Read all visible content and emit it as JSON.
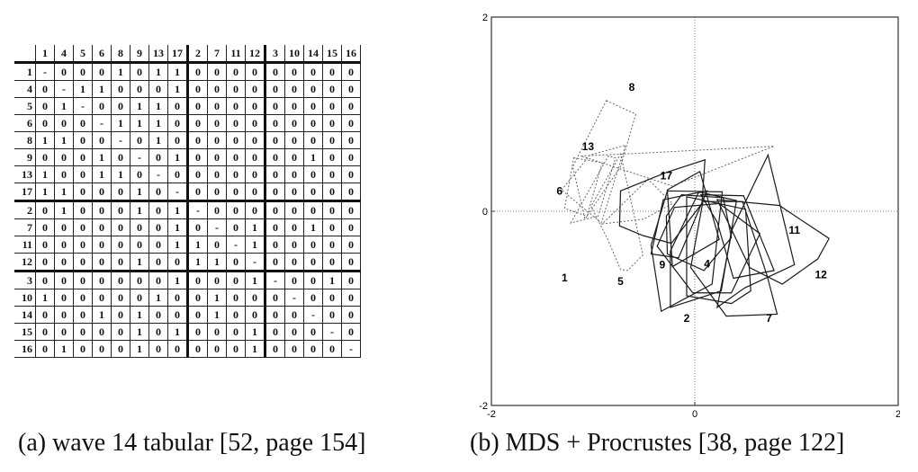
{
  "table": {
    "order": [
      "1",
      "4",
      "5",
      "6",
      "8",
      "9",
      "13",
      "17",
      "2",
      "7",
      "11",
      "12",
      "3",
      "10",
      "14",
      "15",
      "16"
    ],
    "rows": [
      [
        "-",
        "0",
        "0",
        "0",
        "1",
        "0",
        "1",
        "1",
        "0",
        "0",
        "0",
        "0",
        "0",
        "0",
        "0",
        "0",
        "0"
      ],
      [
        "0",
        "-",
        "1",
        "1",
        "0",
        "0",
        "0",
        "1",
        "0",
        "0",
        "0",
        "0",
        "0",
        "0",
        "0",
        "0",
        "0"
      ],
      [
        "0",
        "1",
        "-",
        "0",
        "0",
        "1",
        "1",
        "0",
        "0",
        "0",
        "0",
        "0",
        "0",
        "0",
        "0",
        "0",
        "0"
      ],
      [
        "0",
        "0",
        "0",
        "-",
        "1",
        "1",
        "1",
        "0",
        "0",
        "0",
        "0",
        "0",
        "0",
        "0",
        "0",
        "0",
        "0"
      ],
      [
        "1",
        "1",
        "0",
        "0",
        "-",
        "0",
        "1",
        "0",
        "0",
        "0",
        "0",
        "0",
        "0",
        "0",
        "0",
        "0",
        "0"
      ],
      [
        "0",
        "0",
        "0",
        "1",
        "0",
        "-",
        "0",
        "1",
        "0",
        "0",
        "0",
        "0",
        "0",
        "0",
        "1",
        "0",
        "0"
      ],
      [
        "1",
        "0",
        "0",
        "1",
        "1",
        "0",
        "-",
        "0",
        "0",
        "0",
        "0",
        "0",
        "0",
        "0",
        "0",
        "0",
        "0"
      ],
      [
        "1",
        "1",
        "0",
        "0",
        "0",
        "1",
        "0",
        "-",
        "0",
        "0",
        "0",
        "0",
        "0",
        "0",
        "0",
        "0",
        "0"
      ],
      [
        "0",
        "1",
        "0",
        "0",
        "0",
        "1",
        "0",
        "1",
        "-",
        "0",
        "0",
        "0",
        "0",
        "0",
        "0",
        "0",
        "0"
      ],
      [
        "0",
        "0",
        "0",
        "0",
        "0",
        "0",
        "0",
        "1",
        "0",
        "-",
        "0",
        "1",
        "0",
        "0",
        "1",
        "0",
        "0"
      ],
      [
        "0",
        "0",
        "0",
        "0",
        "0",
        "0",
        "0",
        "1",
        "1",
        "0",
        "-",
        "1",
        "0",
        "0",
        "0",
        "0",
        "0"
      ],
      [
        "0",
        "0",
        "0",
        "0",
        "0",
        "1",
        "0",
        "0",
        "1",
        "1",
        "0",
        "-",
        "0",
        "0",
        "0",
        "0",
        "0"
      ],
      [
        "0",
        "0",
        "0",
        "0",
        "0",
        "0",
        "0",
        "1",
        "0",
        "0",
        "0",
        "1",
        "-",
        "0",
        "0",
        "1",
        "0"
      ],
      [
        "1",
        "0",
        "0",
        "0",
        "0",
        "0",
        "1",
        "0",
        "0",
        "1",
        "0",
        "0",
        "0",
        "-",
        "0",
        "0",
        "0"
      ],
      [
        "0",
        "0",
        "0",
        "1",
        "0",
        "1",
        "0",
        "0",
        "0",
        "1",
        "0",
        "0",
        "0",
        "0",
        "-",
        "0",
        "0"
      ],
      [
        "0",
        "0",
        "0",
        "0",
        "0",
        "1",
        "0",
        "1",
        "0",
        "0",
        "0",
        "1",
        "0",
        "0",
        "0",
        "-",
        "0"
      ],
      [
        "0",
        "1",
        "0",
        "0",
        "0",
        "1",
        "0",
        "0",
        "0",
        "0",
        "0",
        "1",
        "0",
        "0",
        "0",
        "0",
        "-"
      ]
    ]
  },
  "plot": {
    "x_ticks": [
      "-2",
      "0",
      "2"
    ],
    "y_ticks": [
      "2",
      "0",
      "-2"
    ],
    "range": [
      -2,
      2
    ],
    "labels": [
      {
        "text": "8",
        "x": -0.62,
        "y": 1.24
      },
      {
        "text": "13",
        "x": -1.05,
        "y": 0.63
      },
      {
        "text": "6",
        "x": -1.33,
        "y": 0.17
      },
      {
        "text": "1",
        "x": -1.28,
        "y": -0.72
      },
      {
        "text": "5",
        "x": -0.73,
        "y": -0.76
      },
      {
        "text": "17",
        "x": -0.28,
        "y": 0.33
      },
      {
        "text": "9",
        "x": -0.32,
        "y": -0.59
      },
      {
        "text": "4",
        "x": 0.12,
        "y": -0.58
      },
      {
        "text": "11",
        "x": 0.98,
        "y": -0.23
      },
      {
        "text": "12",
        "x": 1.24,
        "y": -0.69
      },
      {
        "text": "2",
        "x": -0.08,
        "y": -1.14
      },
      {
        "text": "7",
        "x": 0.73,
        "y": -1.14
      }
    ],
    "dotted_polygons": [
      [
        [
          -0.87,
          1.14
        ],
        [
          -0.58,
          1.0
        ],
        [
          -0.73,
          0.46
        ],
        [
          -1.08,
          -0.08
        ],
        [
          -1.2,
          0.46
        ]
      ],
      [
        [
          -1.19,
          0.55
        ],
        [
          -0.91,
          0.5
        ],
        [
          -1.06,
          -0.05
        ],
        [
          -1.28,
          0.03
        ]
      ],
      [
        [
          -1.31,
          0.22
        ],
        [
          -1.03,
          0.58
        ],
        [
          -0.68,
          0.68
        ],
        [
          -0.92,
          -0.12
        ]
      ],
      [
        [
          -1.22,
          -0.12
        ],
        [
          -0.85,
          0.57
        ],
        [
          -0.78,
          0.55
        ],
        [
          -0.95,
          -0.05
        ]
      ],
      [
        [
          -1.12,
          0.57
        ],
        [
          -0.68,
          0.59
        ],
        [
          0.78,
          0.67
        ],
        [
          -0.22,
          0.26
        ]
      ],
      [
        [
          -1.02,
          0.05
        ],
        [
          -0.86,
          -0.28
        ],
        [
          -0.73,
          -0.6
        ],
        [
          -0.66,
          -0.61
        ],
        [
          -0.51,
          -0.45
        ],
        [
          -0.73,
          0.59
        ]
      ],
      [
        [
          -0.91,
          -0.13
        ],
        [
          -0.5,
          -0.08
        ],
        [
          -0.22,
          0.08
        ],
        [
          -0.46,
          0.33
        ]
      ]
    ],
    "solid_polygons": [
      [
        [
          -0.73,
          0.21
        ],
        [
          -0.28,
          0.4
        ],
        [
          0.1,
          0.53
        ],
        [
          0.07,
          0.08
        ],
        [
          -0.23,
          -0.33
        ],
        [
          -0.51,
          -0.25
        ],
        [
          -0.74,
          -0.15
        ]
      ],
      [
        [
          -0.31,
          0.12
        ],
        [
          0.12,
          0.21
        ],
        [
          -0.16,
          -0.48
        ],
        [
          -0.43,
          -0.44
        ]
      ],
      [
        [
          -0.27,
          0.22
        ],
        [
          0.05,
          0.41
        ],
        [
          0.24,
          -0.29
        ],
        [
          -0.22,
          -0.57
        ]
      ],
      [
        [
          -0.13,
          0.17
        ],
        [
          0.28,
          0.14
        ],
        [
          0.36,
          -0.27
        ],
        [
          0.09,
          -0.61
        ],
        [
          -0.27,
          -0.44
        ],
        [
          -0.28,
          -0.05
        ]
      ],
      [
        [
          0.06,
          0.17
        ],
        [
          0.48,
          0.16
        ],
        [
          0.78,
          -0.61
        ],
        [
          0.38,
          -0.69
        ],
        [
          0.22,
          -0.11
        ]
      ],
      [
        [
          0.22,
          0.12
        ],
        [
          0.83,
          0.06
        ],
        [
          1.32,
          -0.28
        ],
        [
          1.21,
          -0.49
        ],
        [
          0.86,
          -0.75
        ],
        [
          0.54,
          -0.58
        ]
      ],
      [
        [
          0.37,
          -0.18
        ],
        [
          0.72,
          0.58
        ],
        [
          0.98,
          -0.55
        ],
        [
          0.49,
          -0.79
        ],
        [
          0.22,
          -0.99
        ]
      ],
      [
        [
          -0.2,
          0.04
        ],
        [
          0.24,
          0.08
        ],
        [
          0.64,
          -0.23
        ],
        [
          0.36,
          -0.84
        ],
        [
          -0.02,
          -0.84
        ],
        [
          -0.37,
          -0.36
        ]
      ],
      [
        [
          -0.27,
          0.21
        ],
        [
          0.27,
          0.2
        ],
        [
          0.17,
          -0.75
        ],
        [
          -0.33,
          -1.03
        ],
        [
          -0.43,
          -0.35
        ]
      ],
      [
        [
          0.08,
          0.1
        ],
        [
          0.47,
          0.1
        ],
        [
          0.71,
          -0.66
        ],
        [
          0.81,
          -1.06
        ],
        [
          0.31,
          -1.08
        ],
        [
          -0.04,
          -0.58
        ]
      ],
      [
        [
          0.04,
          0.2
        ],
        [
          0.41,
          0.11
        ],
        [
          0.26,
          -0.82
        ],
        [
          -0.24,
          -0.99
        ],
        [
          -0.24,
          -0.41
        ]
      ],
      [
        [
          -0.08,
          0.15
        ],
        [
          0.5,
          0.02
        ],
        [
          0.55,
          -0.82
        ],
        [
          0.36,
          -0.95
        ],
        [
          -0.08,
          -0.87
        ]
      ]
    ]
  },
  "captions": {
    "a": "(a)  wave 14 tabular [52, page 154]",
    "b": "(b)  MDS + Procrustes [38, page 122]"
  }
}
